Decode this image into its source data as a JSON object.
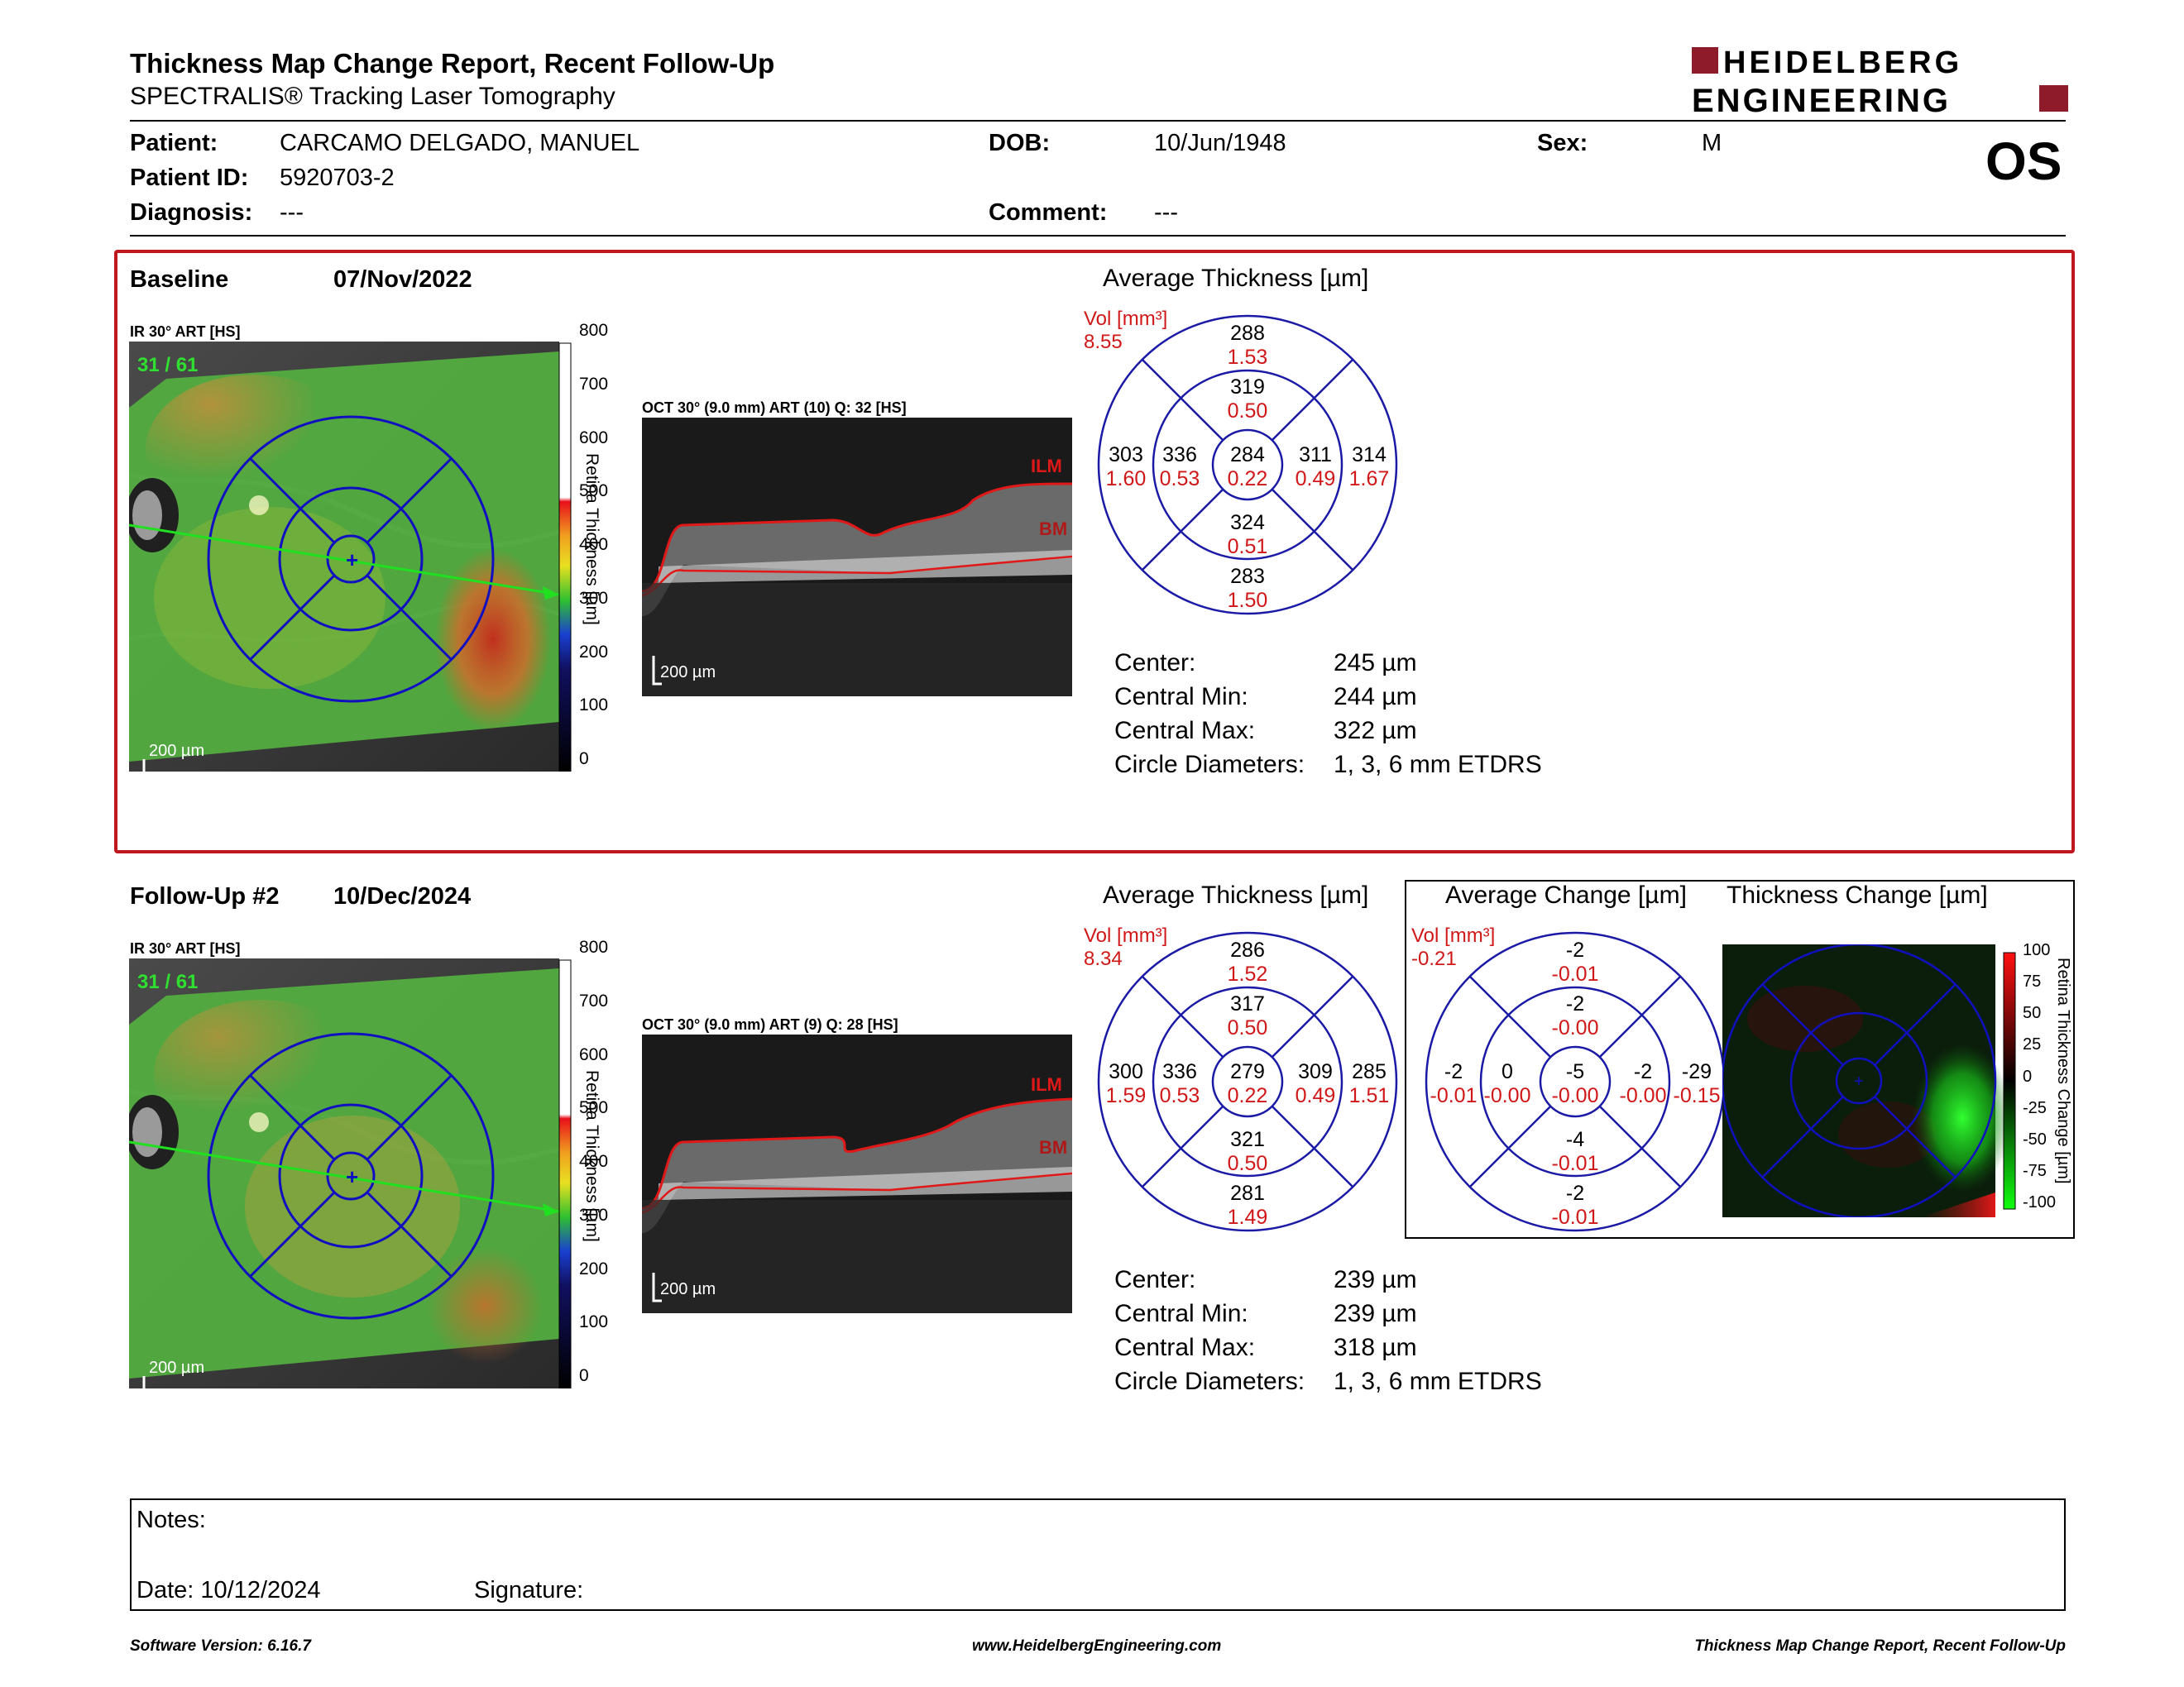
{
  "header": {
    "title": "Thickness Map Change Report, Recent Follow-Up",
    "subtitle": "SPECTRALIS® Tracking Laser Tomography",
    "logo_line1": "HEIDELBERG",
    "logo_line2": "ENGINEERING",
    "eye": "OS"
  },
  "patient": {
    "patient_label": "Patient:",
    "patient_value": "CARCAMO DELGADO, MANUEL",
    "id_label": "Patient ID:",
    "id_value": "5920703-2",
    "diagnosis_label": "Diagnosis:",
    "diagnosis_value": "---",
    "dob_label": "DOB:",
    "dob_value": "10/Jun/1948",
    "comment_label": "Comment:",
    "comment_value": "---",
    "sex_label": "Sex:",
    "sex_value": "M"
  },
  "baseline": {
    "label": "Baseline",
    "date": "07/Nov/2022",
    "ir_caption": "IR 30° ART [HS]",
    "ir_counter": "31 / 61",
    "scale_bar": "200 µm",
    "oct_caption": "OCT 30° (9.0 mm) ART (10) Q: 32 [HS]",
    "oct_scale": "200 µm",
    "ilm": "ILM",
    "bm": "BM",
    "colorbar_ticks": [
      "800",
      "700",
      "600",
      "500",
      "400",
      "300",
      "200",
      "100",
      "0"
    ],
    "colorbar_title": "Retina Thickness [µm]",
    "avg_title": "Average Thickness [µm]",
    "vol_label": "Vol [mm³]",
    "vol_total": "8.55",
    "etdrs": {
      "outer_sup": {
        "t": "288",
        "v": "1.53"
      },
      "inner_sup": {
        "t": "319",
        "v": "0.50"
      },
      "outer_temp": {
        "t": "303",
        "v": "1.60"
      },
      "inner_temp": {
        "t": "336",
        "v": "0.53"
      },
      "center": {
        "t": "284",
        "v": "0.22"
      },
      "inner_nas": {
        "t": "311",
        "v": "0.49"
      },
      "outer_nas": {
        "t": "314",
        "v": "1.67"
      },
      "inner_inf": {
        "t": "324",
        "v": "0.51"
      },
      "outer_inf": {
        "t": "283",
        "v": "1.50"
      }
    },
    "stats": [
      {
        "label": "Center:",
        "value": "245 µm"
      },
      {
        "label": "Central Min:",
        "value": "244 µm"
      },
      {
        "label": "Central Max:",
        "value": "322 µm"
      },
      {
        "label": "Circle Diameters:",
        "value": "1, 3, 6 mm ETDRS"
      }
    ]
  },
  "followup": {
    "label": "Follow-Up #2",
    "date": "10/Dec/2024",
    "ir_caption": "IR 30° ART [HS]",
    "ir_counter": "31 / 61",
    "scale_bar": "200 µm",
    "oct_caption": "OCT 30° (9.0 mm) ART (9) Q: 28 [HS]",
    "oct_scale": "200 µm",
    "ilm": "ILM",
    "bm": "BM",
    "colorbar_ticks": [
      "800",
      "700",
      "600",
      "500",
      "400",
      "300",
      "200",
      "100",
      "0"
    ],
    "colorbar_title": "Retina Thickness [µm]",
    "avg_title": "Average Thickness [µm]",
    "vol_label": "Vol [mm³]",
    "vol_total": "8.34",
    "etdrs": {
      "outer_sup": {
        "t": "286",
        "v": "1.52"
      },
      "inner_sup": {
        "t": "317",
        "v": "0.50"
      },
      "outer_temp": {
        "t": "300",
        "v": "1.59"
      },
      "inner_temp": {
        "t": "336",
        "v": "0.53"
      },
      "center": {
        "t": "279",
        "v": "0.22"
      },
      "inner_nas": {
        "t": "309",
        "v": "0.49"
      },
      "outer_nas": {
        "t": "285",
        "v": "1.51"
      },
      "inner_inf": {
        "t": "321",
        "v": "0.50"
      },
      "outer_inf": {
        "t": "281",
        "v": "1.49"
      }
    },
    "stats": [
      {
        "label": "Center:",
        "value": "239 µm"
      },
      {
        "label": "Central Min:",
        "value": "239 µm"
      },
      {
        "label": "Central Max:",
        "value": "318 µm"
      },
      {
        "label": "Circle Diameters:",
        "value": "1, 3, 6 mm ETDRS"
      }
    ]
  },
  "change": {
    "avg_title": "Average Change [µm]",
    "map_title": "Thickness Change [µm]",
    "vol_label": "Vol [mm³]",
    "vol_total": "-0.21",
    "etdrs": {
      "outer_sup": {
        "t": "-2",
        "v": "-0.01"
      },
      "inner_sup": {
        "t": "-2",
        "v": "-0.00"
      },
      "outer_temp": {
        "t": "-2",
        "v": "-0.01"
      },
      "inner_temp": {
        "t": "0",
        "v": "-0.00"
      },
      "center": {
        "t": "-5",
        "v": "-0.00"
      },
      "inner_nas": {
        "t": "-2",
        "v": "-0.00"
      },
      "outer_nas": {
        "t": "-29",
        "v": "-0.15"
      },
      "inner_inf": {
        "t": "-4",
        "v": "-0.01"
      },
      "outer_inf": {
        "t": "-2",
        "v": "-0.01"
      }
    },
    "colorbar_ticks": [
      "100",
      "75",
      "50",
      "25",
      "0",
      "-25",
      "-50",
      "-75",
      "-100"
    ],
    "colorbar_title": "Retina Thickness Change [µm]"
  },
  "notes": {
    "notes_label": "Notes:",
    "date_label": "Date: 10/12/2024",
    "signature_label": "Signature:"
  },
  "footer": {
    "software": "Software Version: 6.16.7",
    "website": "www.HeidelbergEngineering.com",
    "report": "Thickness Map Change Report, Recent Follow-Up"
  },
  "colors": {
    "accent_red": "#c0171e",
    "etdrs_blue": "#1a1aa6",
    "volume_red": "#d01818"
  }
}
